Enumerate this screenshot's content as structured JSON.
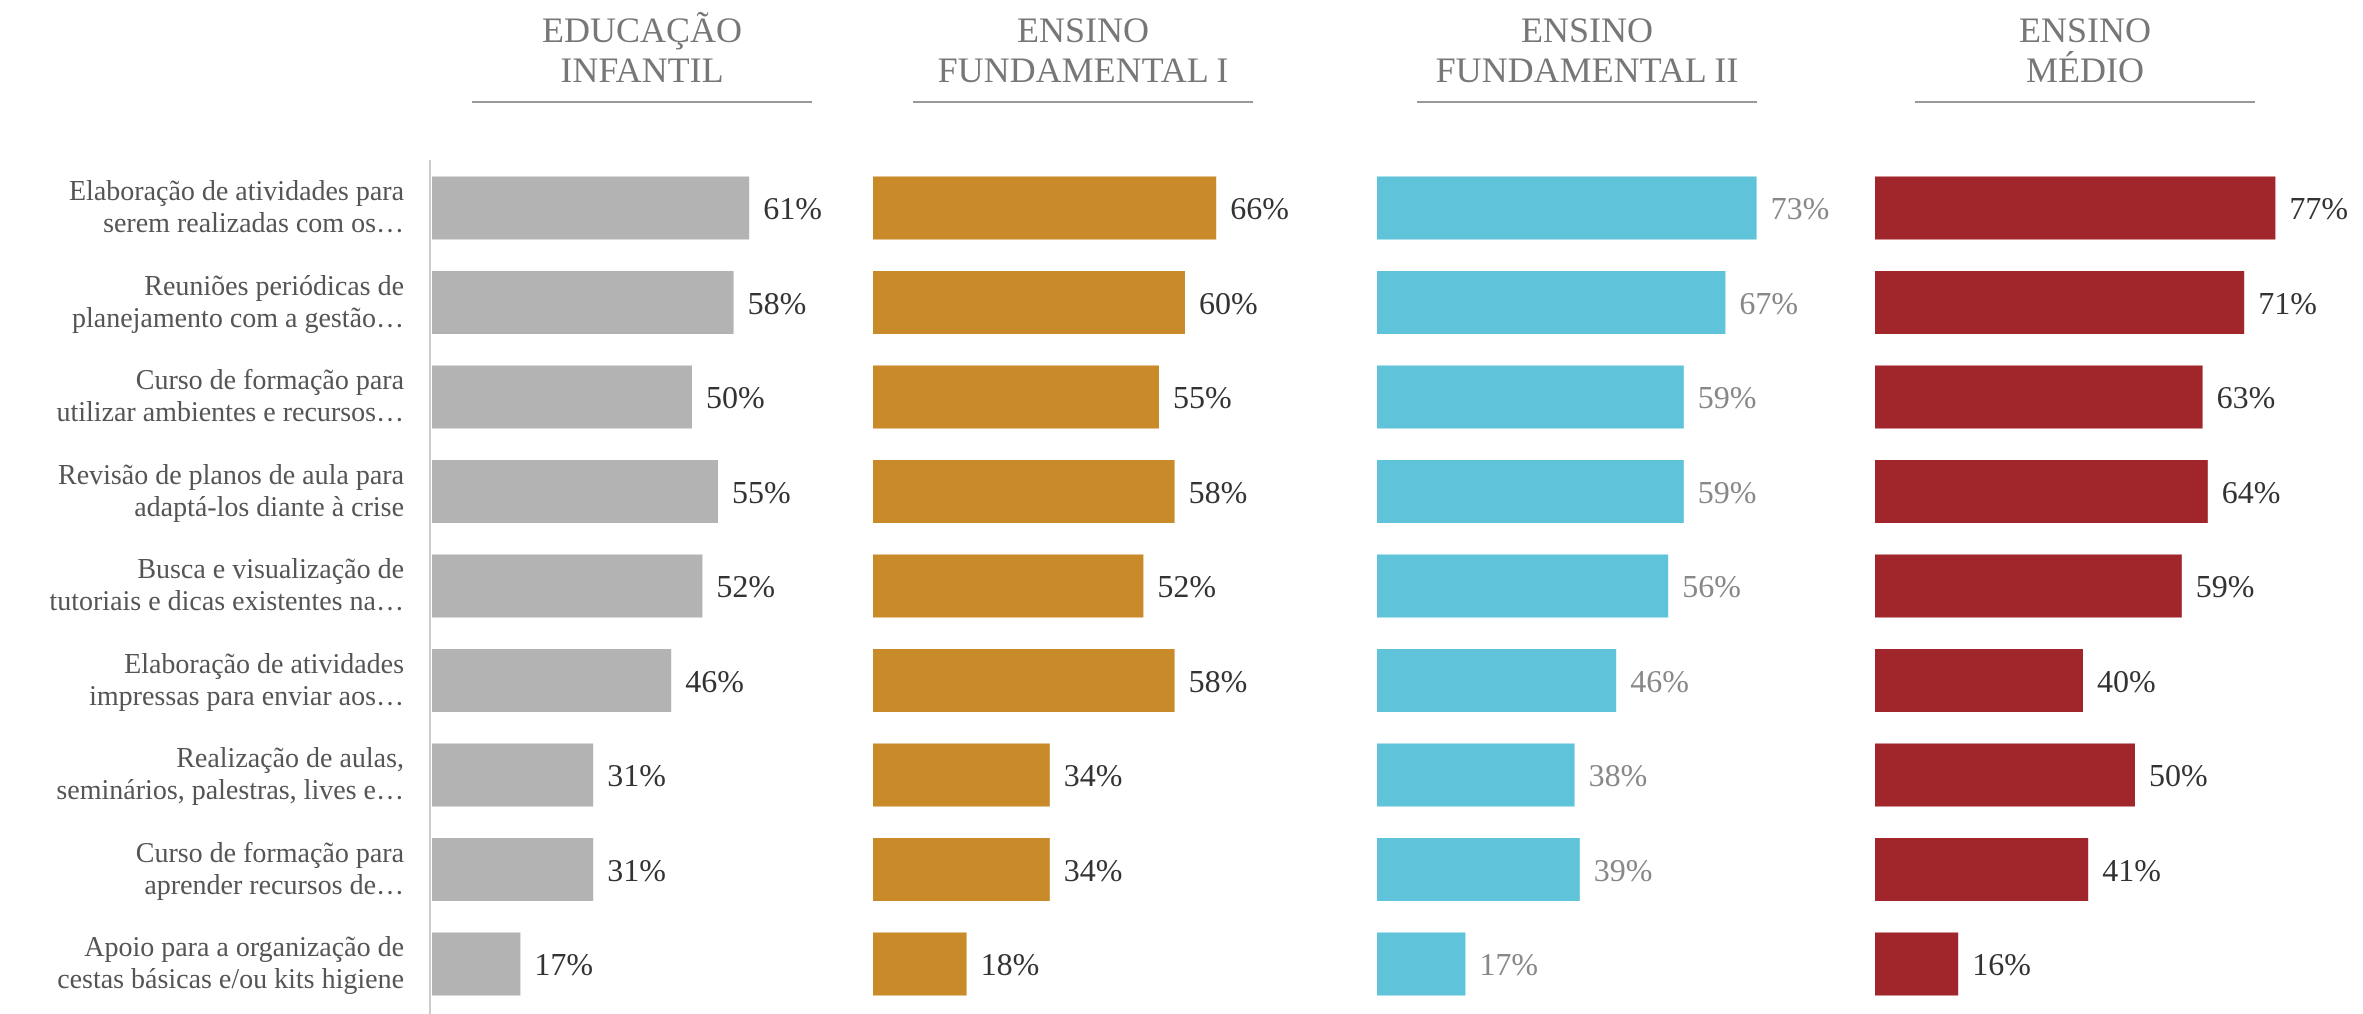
{
  "chart_data": {
    "type": "bar",
    "categories": [
      "Elaboração de atividades para\nserem realizadas com os…",
      "Reuniões periódicas de\nplanejamento com a gestão…",
      "Curso de formação para\nutilizar ambientes e recursos…",
      "Revisão de planos de aula para\nadaptá-los diante à crise",
      "Busca e visualização de\ntutoriais e dicas existentes na…",
      "Elaboração de atividades\nimpressas para enviar aos…",
      "Realização de aulas,\nseminários, palestras, lives e…",
      "Curso de formação para\naprender recursos de…",
      "Apoio para a organização de\ncestas básicas e/ou kits higiene"
    ],
    "series": [
      {
        "name": "EDUCAÇÃO\nINFANTIL",
        "color": "#b3b3b3",
        "values": [
          61,
          58,
          50,
          55,
          52,
          46,
          31,
          31,
          17
        ],
        "value_labels": [
          "61%",
          "58%",
          "50%",
          "55%",
          "52%",
          "46%",
          "31%",
          "31%",
          "17%"
        ]
      },
      {
        "name": "ENSINO\nFUNDAMENTAL I",
        "color": "#c98a2a",
        "values": [
          66,
          60,
          55,
          58,
          52,
          58,
          34,
          34,
          18
        ],
        "value_labels": [
          "66%",
          "60%",
          "55%",
          "58%",
          "52%",
          "58%",
          "34%",
          "34%",
          "18%"
        ]
      },
      {
        "name": "ENSINO\nFUNDAMENTAL II",
        "color": "#5fc3d9",
        "values": [
          73,
          67,
          59,
          59,
          56,
          46,
          38,
          39,
          17
        ],
        "value_labels": [
          "73%",
          "67%",
          "59%",
          "59%",
          "56%",
          "46%",
          "38%",
          "39%",
          "17%"
        ]
      },
      {
        "name": "ENSINO\nMÉDIO",
        "color": "#a0262b",
        "values": [
          77,
          71,
          63,
          64,
          59,
          40,
          50,
          41,
          16
        ],
        "value_labels": [
          "77%",
          "71%",
          "63%",
          "64%",
          "59%",
          "40%",
          "50%",
          "41%",
          "16%"
        ]
      }
    ]
  }
}
